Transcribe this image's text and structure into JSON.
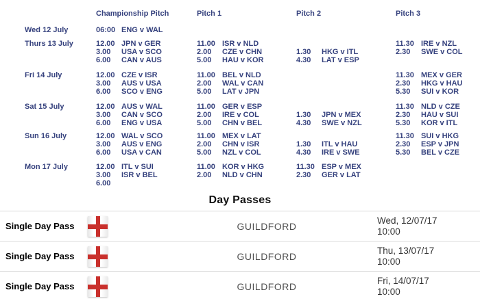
{
  "colors": {
    "schedule_text": "#36427e",
    "row_border": "#d9d9d9",
    "flag_red": "#c9302c",
    "title_text": "#111111",
    "location_text": "#4f4f4f",
    "date_text": "#333333"
  },
  "schedule": {
    "columns": [
      "Championship Pitch",
      "Pitch 1",
      "Pitch 2",
      "Pitch 3"
    ],
    "rows": [
      {
        "day": "Wed 12 July",
        "championship": [
          {
            "time": "06:00",
            "match": "ENG v WAL"
          }
        ],
        "pitch1": [],
        "pitch2": [],
        "pitch3": [],
        "pitch2_offset_lines": 0
      },
      {
        "day": "Thurs 13 July",
        "championship": [
          {
            "time": "12.00",
            "match": "JPN v GER"
          },
          {
            "time": "3.00",
            "match": "USA v SCO"
          },
          {
            "time": "6.00",
            "match": "CAN v AUS"
          }
        ],
        "pitch1": [
          {
            "time": "11.00",
            "match": "ISR v NLD"
          },
          {
            "time": "2.00",
            "match": "CZE v CHN"
          },
          {
            "time": "5.00",
            "match": "HAU v KOR"
          }
        ],
        "pitch2": [
          {
            "time": "1.30",
            "match": "HKG v ITL"
          },
          {
            "time": "4.30",
            "match": "LAT v ESP"
          }
        ],
        "pitch3": [
          {
            "time": "11.30",
            "match": "IRE v NZL"
          },
          {
            "time": "2.30",
            "match": "SWE v COL"
          }
        ],
        "pitch2_offset_lines": 1
      },
      {
        "day": "Fri 14 July",
        "championship": [
          {
            "time": "12.00",
            "match": "CZE v ISR"
          },
          {
            "time": "3.00",
            "match": "AUS v USA"
          },
          {
            "time": "6.00",
            "match": "SCO v ENG"
          }
        ],
        "pitch1": [
          {
            "time": "11.00",
            "match": "BEL v NLD"
          },
          {
            "time": "2.00",
            "match": "WAL v CAN"
          },
          {
            "time": "5.00",
            "match": "LAT v JPN"
          }
        ],
        "pitch2": [],
        "pitch3": [
          {
            "time": "11.30",
            "match": "MEX v GER"
          },
          {
            "time": "2.30",
            "match": "HKG v HAU"
          },
          {
            "time": "5.30",
            "match": "SUI v KOR"
          }
        ],
        "pitch2_offset_lines": 0
      },
      {
        "day": "Sat 15 July",
        "championship": [
          {
            "time": "12.00",
            "match": "AUS v WAL"
          },
          {
            "time": "3.00",
            "match": "CAN v SCO"
          },
          {
            "time": "6.00",
            "match": "ENG v USA"
          }
        ],
        "pitch1": [
          {
            "time": "11.00",
            "match": "GER v ESP"
          },
          {
            "time": "2.00",
            "match": "IRE v COL"
          },
          {
            "time": "5.00",
            "match": "CHN v BEL"
          }
        ],
        "pitch2": [
          {
            "time": "1.30",
            "match": "JPN v MEX"
          },
          {
            "time": "4.30",
            "match": "SWE v NZL"
          }
        ],
        "pitch3": [
          {
            "time": "11.30",
            "match": "NLD v CZE"
          },
          {
            "time": "2.30",
            "match": "HAU v SUI"
          },
          {
            "time": "5.30",
            "match": "KOR v ITL"
          }
        ],
        "pitch2_offset_lines": 1
      },
      {
        "day": "Sun 16 July",
        "championship": [
          {
            "time": "12.00",
            "match": "WAL v SCO"
          },
          {
            "time": "3.00",
            "match": "AUS v ENG"
          },
          {
            "time": "6.00",
            "match": "USA v CAN"
          }
        ],
        "pitch1": [
          {
            "time": "11.00",
            "match": "MEX v LAT"
          },
          {
            "time": "2.00",
            "match": "CHN v ISR"
          },
          {
            "time": "5.00",
            "match": "NZL v COL"
          }
        ],
        "pitch2": [
          {
            "time": "1.30",
            "match": "ITL v HAU"
          },
          {
            "time": "4.30",
            "match": "IRE v SWE"
          }
        ],
        "pitch3": [
          {
            "time": "11.30",
            "match": "SUI v HKG"
          },
          {
            "time": "2.30",
            "match": "ESP v JPN"
          },
          {
            "time": "5.30",
            "match": "BEL v CZE"
          }
        ],
        "pitch2_offset_lines": 1
      },
      {
        "day": "Mon 17 July",
        "championship": [
          {
            "time": "12.00",
            "match": "ITL v SUI"
          },
          {
            "time": "3.00",
            "match": "ISR v BEL"
          },
          {
            "time": "6.00",
            "match": ""
          }
        ],
        "pitch1": [
          {
            "time": "11.00",
            "match": "KOR v HKG"
          },
          {
            "time": "2.00",
            "match": "NLD v CHN"
          }
        ],
        "pitch2": [
          {
            "time": "11.30",
            "match": "ESP v MEX"
          },
          {
            "time": "2.30",
            "match": "GER v LAT"
          }
        ],
        "pitch3": [],
        "pitch2_offset_lines": 0
      }
    ]
  },
  "day_passes": {
    "title": "Day Passes",
    "rows": [
      {
        "name": "Single Day Pass",
        "flag": "england-flag",
        "location": "GUILDFORD",
        "date": "Wed, 12/07/17",
        "time": "10:00"
      },
      {
        "name": "Single Day Pass",
        "flag": "england-flag",
        "location": "GUILDFORD",
        "date": "Thu, 13/07/17",
        "time": "10:00"
      },
      {
        "name": "Single Day Pass",
        "flag": "england-flag",
        "location": "GUILDFORD",
        "date": "Fri, 14/07/17",
        "time": "10:00"
      }
    ]
  }
}
